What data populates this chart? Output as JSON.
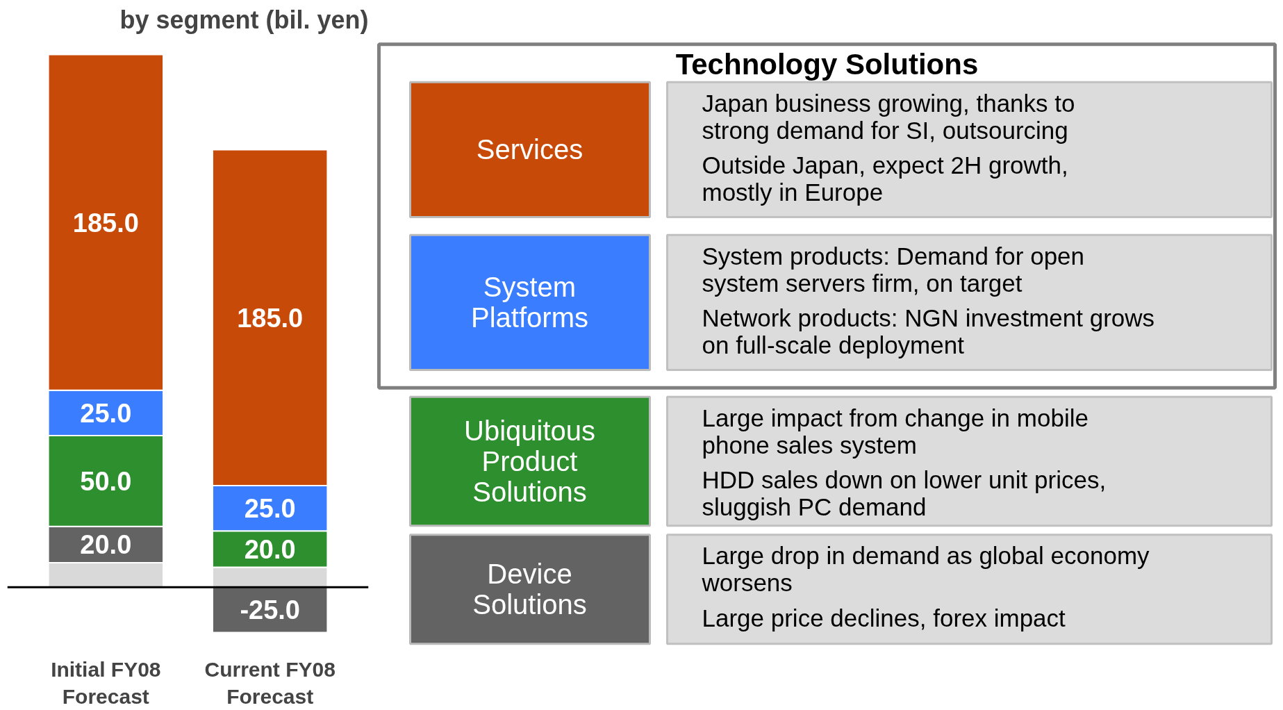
{
  "chart_data": {
    "type": "bar",
    "stacked": true,
    "title": "by segment (bil. yen)",
    "categories": [
      "Initial FY08 Forecast",
      "Current FY08 Forecast"
    ],
    "series": [
      {
        "color": "#d9d9d9",
        "values": [
          13.5,
          11
        ],
        "value_labels": [
          null,
          null
        ]
      },
      {
        "name": "Device Solutions",
        "color": "#636363",
        "values": [
          20.0,
          -25.0
        ],
        "value_labels": [
          "20.0",
          "-25.0"
        ]
      },
      {
        "name": "Ubiquitous Product Solutions",
        "color": "#2e8f2e",
        "values": [
          50.0,
          20.0
        ],
        "value_labels": [
          "50.0",
          "20.0"
        ]
      },
      {
        "name": "System Platforms",
        "color": "#3a7dff",
        "values": [
          25.0,
          25.0
        ],
        "value_labels": [
          "25.0",
          "25.0"
        ]
      },
      {
        "name": "Services",
        "color": "#c84a08",
        "values": [
          185.0,
          185.0
        ],
        "value_labels": [
          "185.0",
          "185.0"
        ]
      }
    ],
    "annotations": [
      "Technology Solutions",
      "Japan business growing, thanks to strong demand for SI, outsourcing",
      "Outside Japan, expect 2H growth, mostly in Europe",
      "System products: Demand for open system servers firm, on target",
      "Network products: NGN investment grows on full-scale deployment",
      "Large impact from change in mobile phone sales system",
      "HDD sales down on lower unit prices, sluggish PC demand",
      "Large drop in demand as global economy worsens",
      "Large price declines, forex impact"
    ]
  }
}
